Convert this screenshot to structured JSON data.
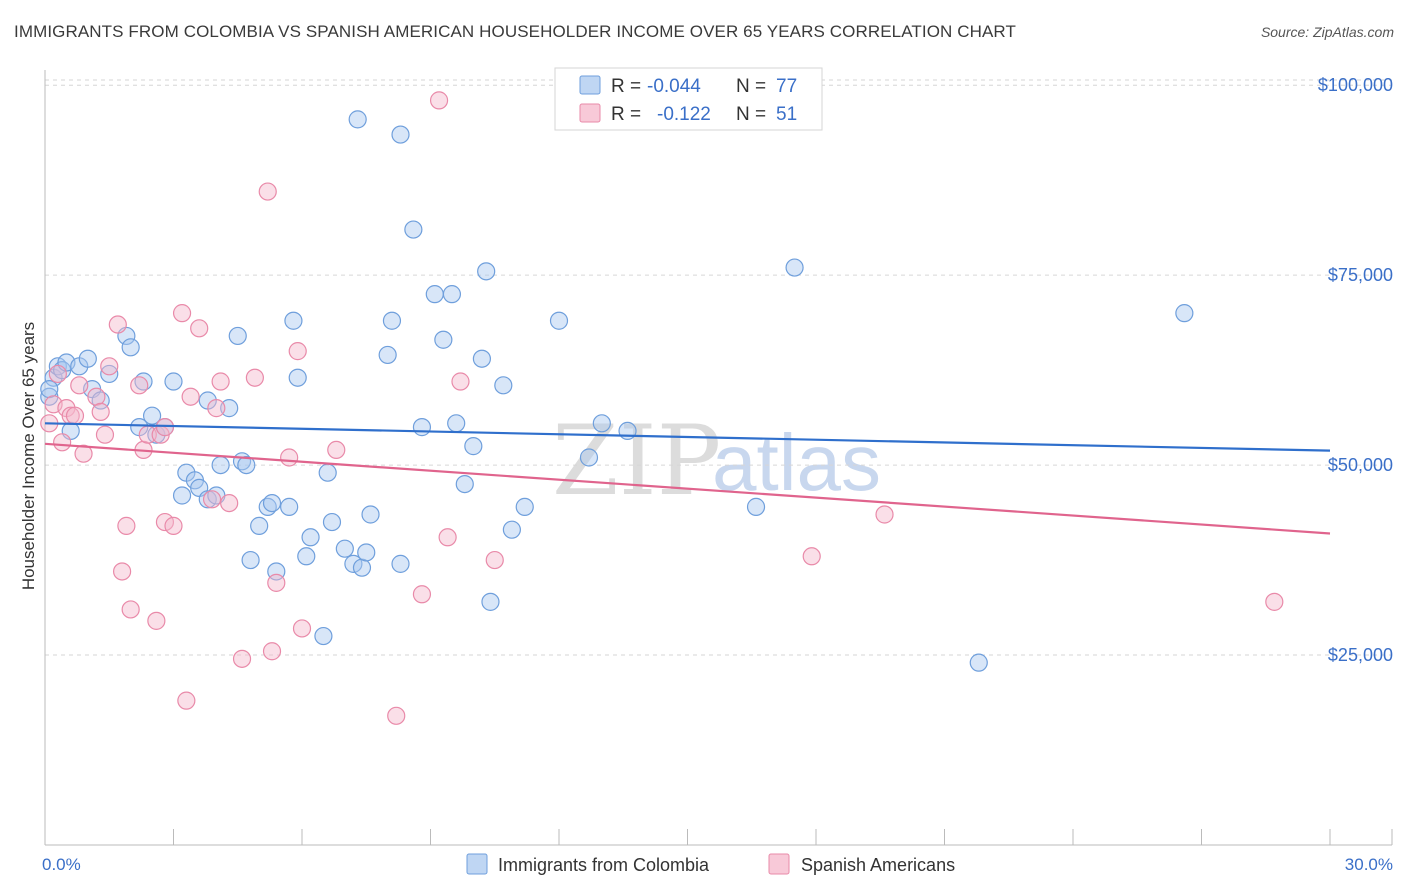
{
  "title": "IMMIGRANTS FROM COLOMBIA VS SPANISH AMERICAN HOUSEHOLDER INCOME OVER 65 YEARS CORRELATION CHART",
  "source": "Source: ZipAtlas.com",
  "watermark": {
    "zip": "ZIP",
    "atlas": "atlas"
  },
  "legend": {
    "r_label": "R =",
    "n_label": "N =",
    "rows": [
      {
        "r": "-0.044",
        "n": "77",
        "color": "#a9c8ef"
      },
      {
        "r": "-0.122",
        "n": "51",
        "color": "#f5b7cb"
      }
    ]
  },
  "chart_data": {
    "type": "scatter",
    "title": "IMMIGRANTS FROM COLOMBIA VS SPANISH AMERICAN HOUSEHOLDER INCOME OVER 65 YEARS CORRELATION CHART",
    "xlabel": "",
    "ylabel": "Householder Income Over 65 years",
    "xlim": [
      0,
      30
    ],
    "ylim": [
      0,
      102000
    ],
    "x_tick_labels": [
      "0.0%",
      "30.0%"
    ],
    "y_ticks": [
      25000,
      50000,
      75000,
      100000
    ],
    "y_tick_labels": [
      "$25,000",
      "$50,000",
      "$75,000",
      "$100,000"
    ],
    "grid": true,
    "series": [
      {
        "name": "Immigrants from Colombia",
        "color": "#a9c8ef",
        "stroke": "#6f9fdc",
        "trend": {
          "x": [
            0,
            30
          ],
          "y": [
            55500,
            51900
          ],
          "color": "#2f6fcc"
        },
        "points": [
          [
            0.1,
            59000
          ],
          [
            0.2,
            61500
          ],
          [
            0.3,
            63000
          ],
          [
            0.4,
            62500
          ],
          [
            0.5,
            63500
          ],
          [
            0.6,
            54500
          ],
          [
            0.8,
            63000
          ],
          [
            1.0,
            64000
          ],
          [
            1.1,
            60000
          ],
          [
            1.3,
            58500
          ],
          [
            1.5,
            62000
          ],
          [
            1.9,
            67000
          ],
          [
            2.0,
            65500
          ],
          [
            2.2,
            55000
          ],
          [
            2.3,
            61000
          ],
          [
            2.5,
            56500
          ],
          [
            2.6,
            54000
          ],
          [
            2.8,
            55000
          ],
          [
            3.0,
            61000
          ],
          [
            3.2,
            46000
          ],
          [
            3.3,
            49000
          ],
          [
            3.5,
            48000
          ],
          [
            3.6,
            47000
          ],
          [
            3.8,
            58500
          ],
          [
            3.8,
            45500
          ],
          [
            4.0,
            46000
          ],
          [
            4.1,
            50000
          ],
          [
            4.3,
            57500
          ],
          [
            4.5,
            67000
          ],
          [
            4.6,
            50500
          ],
          [
            4.7,
            50000
          ],
          [
            4.8,
            37500
          ],
          [
            5.0,
            42000
          ],
          [
            5.2,
            44500
          ],
          [
            5.3,
            45000
          ],
          [
            5.4,
            36000
          ],
          [
            5.7,
            44500
          ],
          [
            5.8,
            69000
          ],
          [
            5.9,
            61500
          ],
          [
            6.1,
            38000
          ],
          [
            6.2,
            40500
          ],
          [
            6.5,
            27500
          ],
          [
            6.6,
            49000
          ],
          [
            6.7,
            42500
          ],
          [
            7.0,
            39000
          ],
          [
            7.2,
            37000
          ],
          [
            7.4,
            36500
          ],
          [
            7.5,
            38500
          ],
          [
            7.6,
            43500
          ],
          [
            7.3,
            95500
          ],
          [
            8.0,
            64500
          ],
          [
            8.1,
            69000
          ],
          [
            8.3,
            93500
          ],
          [
            8.3,
            37000
          ],
          [
            8.6,
            81000
          ],
          [
            8.8,
            55000
          ],
          [
            9.1,
            72500
          ],
          [
            9.3,
            66500
          ],
          [
            9.5,
            72500
          ],
          [
            9.6,
            55500
          ],
          [
            9.8,
            47500
          ],
          [
            10.0,
            52500
          ],
          [
            10.2,
            64000
          ],
          [
            10.3,
            75500
          ],
          [
            10.4,
            32000
          ],
          [
            10.7,
            60500
          ],
          [
            10.9,
            41500
          ],
          [
            11.2,
            44500
          ],
          [
            12.0,
            69000
          ],
          [
            12.7,
            51000
          ],
          [
            13.0,
            55500
          ],
          [
            13.6,
            54500
          ],
          [
            16.6,
            44500
          ],
          [
            17.5,
            76000
          ],
          [
            21.8,
            24000
          ],
          [
            26.6,
            70000
          ],
          [
            0.1,
            60000
          ]
        ]
      },
      {
        "name": "Spanish Americans",
        "color": "#f5b7cb",
        "stroke": "#e98aa9",
        "trend": {
          "x": [
            0,
            30
          ],
          "y": [
            52800,
            41000
          ],
          "color": "#e0648d"
        },
        "points": [
          [
            0.1,
            55500
          ],
          [
            0.2,
            58000
          ],
          [
            0.3,
            62000
          ],
          [
            0.4,
            53000
          ],
          [
            0.5,
            57500
          ],
          [
            0.6,
            56500
          ],
          [
            0.7,
            56500
          ],
          [
            0.8,
            60500
          ],
          [
            0.9,
            51500
          ],
          [
            1.2,
            59000
          ],
          [
            1.3,
            57000
          ],
          [
            1.4,
            54000
          ],
          [
            1.5,
            63000
          ],
          [
            1.7,
            68500
          ],
          [
            1.8,
            36000
          ],
          [
            1.9,
            42000
          ],
          [
            2.0,
            31000
          ],
          [
            2.2,
            60500
          ],
          [
            2.3,
            52000
          ],
          [
            2.4,
            54000
          ],
          [
            2.6,
            29500
          ],
          [
            2.7,
            54000
          ],
          [
            2.8,
            55000
          ],
          [
            2.8,
            42500
          ],
          [
            3.0,
            42000
          ],
          [
            3.2,
            70000
          ],
          [
            3.3,
            19000
          ],
          [
            3.4,
            59000
          ],
          [
            3.6,
            68000
          ],
          [
            3.9,
            45500
          ],
          [
            4.0,
            57500
          ],
          [
            4.1,
            61000
          ],
          [
            4.3,
            45000
          ],
          [
            4.6,
            24500
          ],
          [
            4.9,
            61500
          ],
          [
            5.2,
            86000
          ],
          [
            5.3,
            25500
          ],
          [
            5.4,
            34500
          ],
          [
            5.7,
            51000
          ],
          [
            5.9,
            65000
          ],
          [
            6.0,
            28500
          ],
          [
            6.8,
            52000
          ],
          [
            8.2,
            17000
          ],
          [
            8.8,
            33000
          ],
          [
            9.2,
            98000
          ],
          [
            9.4,
            40500
          ],
          [
            9.7,
            61000
          ],
          [
            10.5,
            37500
          ],
          [
            17.9,
            38000
          ],
          [
            19.6,
            43500
          ],
          [
            28.7,
            32000
          ]
        ]
      }
    ]
  },
  "bottom_legend": [
    "Immigrants from Colombia",
    "Spanish Americans"
  ]
}
